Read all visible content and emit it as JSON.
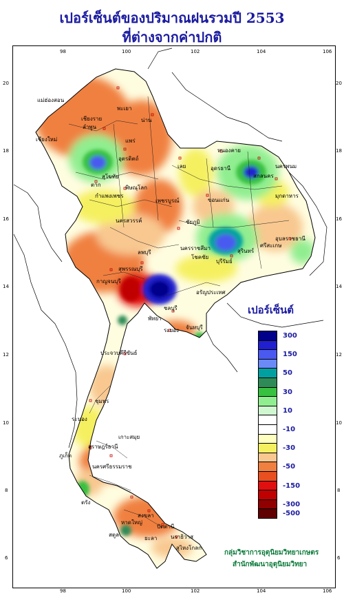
{
  "title": {
    "line1": "เปอร์เซ็นต์ของปริมาณฝนรวมปี  2553",
    "line2": "ที่ต่างจากค่าปกติ"
  },
  "axes": {
    "x_ticks": [
      "98",
      "100",
      "102",
      "104",
      "106"
    ],
    "y_ticks": [
      "20",
      "18",
      "16",
      "14",
      "12",
      "10",
      "8",
      "6"
    ]
  },
  "legend": {
    "title": "เปอร์เซ็นต์",
    "entries": [
      {
        "color": "#00008b",
        "label": "300"
      },
      {
        "color": "#2020d0",
        "label": ""
      },
      {
        "color": "#4a5af0",
        "label": "150"
      },
      {
        "color": "#6a8af8",
        "label": ""
      },
      {
        "color": "#00a0a0",
        "label": "50"
      },
      {
        "color": "#2e8b57",
        "label": ""
      },
      {
        "color": "#38c040",
        "label": "30"
      },
      {
        "color": "#90ee90",
        "label": ""
      },
      {
        "color": "#d0f8d0",
        "label": "10"
      },
      {
        "color": "#ffffff",
        "label": ""
      },
      {
        "color": "#ffffff",
        "label": "-10"
      },
      {
        "color": "#ffffc0",
        "label": ""
      },
      {
        "color": "#f5f060",
        "label": "-30"
      },
      {
        "color": "#f8c890",
        "label": ""
      },
      {
        "color": "#f08040",
        "label": "-50"
      },
      {
        "color": "#e85020",
        "label": ""
      },
      {
        "color": "#e01010",
        "label": "-150"
      },
      {
        "color": "#c00000",
        "label": ""
      },
      {
        "color": "#900000",
        "label": "-300"
      },
      {
        "color": "#600000",
        "label": "-500"
      }
    ]
  },
  "credits": {
    "line1": "กลุ่มวิชาการอุตุนิยมวิทยาเกษตร",
    "line2": "สำนักพัฒนาอุตุนิยมวิทยา"
  },
  "provinces": [
    {
      "name": "แม่ฮ่องสอน"
    },
    {
      "name": "เชียงใหม่"
    },
    {
      "name": "ลำพูน"
    },
    {
      "name": "เชียงราย"
    },
    {
      "name": "พะเยา"
    },
    {
      "name": "แพร่"
    },
    {
      "name": "น่าน"
    },
    {
      "name": "อุตรดิตถ์"
    },
    {
      "name": "ตาก"
    },
    {
      "name": "สุโขทัย"
    },
    {
      "name": "พิษณุโลก"
    },
    {
      "name": "เลย"
    },
    {
      "name": "หนองคาย"
    },
    {
      "name": "อุดรธานี"
    },
    {
      "name": "สกลนคร"
    },
    {
      "name": "นครพนม"
    },
    {
      "name": "มุกดาหาร"
    },
    {
      "name": "ขอนแก่น"
    },
    {
      "name": "กำแพงเพชร"
    },
    {
      "name": "เพชรบูรณ์"
    },
    {
      "name": "นครสวรรค์"
    },
    {
      "name": "ชัยภูมิ"
    },
    {
      "name": "อุบลราชธานี"
    },
    {
      "name": "นครราชสีมา"
    },
    {
      "name": "โชคชัย"
    },
    {
      "name": "สุรินทร์"
    },
    {
      "name": "ศรีสะเกษ"
    },
    {
      "name": "บุรีรัมย์"
    },
    {
      "name": "ลพบุรี"
    },
    {
      "name": "สุพรรณบุรี"
    },
    {
      "name": "กาญจนบุรี"
    },
    {
      "name": "อรัญประเทศ"
    },
    {
      "name": "ชลบุรี"
    },
    {
      "name": "พัทยา"
    },
    {
      "name": "ระยอง"
    },
    {
      "name": "จันทบุรี"
    },
    {
      "name": "ประจวบคีรีขันธ์"
    },
    {
      "name": "ชุมพร"
    },
    {
      "name": "ระนอง"
    },
    {
      "name": "เกาะสมุย"
    },
    {
      "name": "สุราษฎร์ธานี"
    },
    {
      "name": "ภูเก็ต"
    },
    {
      "name": "นครศรีธรรมราช"
    },
    {
      "name": "ตรัง"
    },
    {
      "name": "สงขลา"
    },
    {
      "name": "หาดใหญ่"
    },
    {
      "name": "สตูล"
    },
    {
      "name": "ปัตตานี"
    },
    {
      "name": "นราธิวาส"
    },
    {
      "name": "ยะลา"
    },
    {
      "name": "สุไหงโกลก"
    }
  ]
}
